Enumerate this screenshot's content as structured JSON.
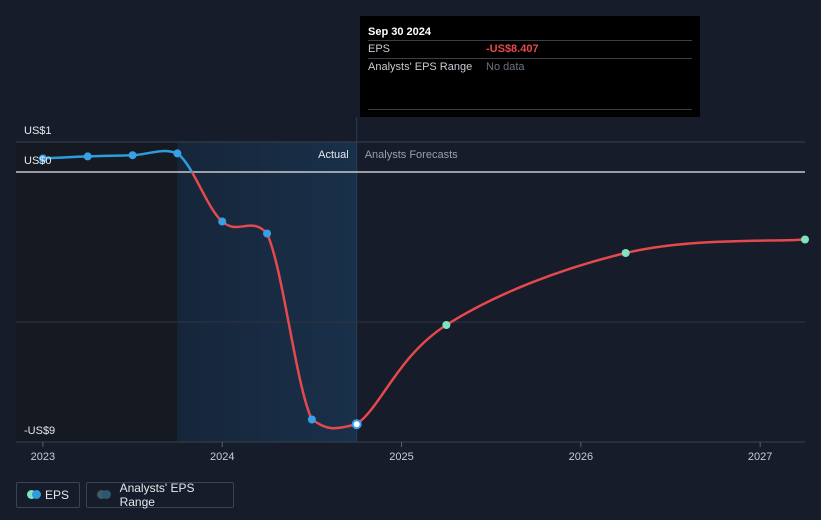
{
  "colors": {
    "background": "#161c29",
    "actual_line": "#2d9cdb",
    "eps_line": "#e5484d",
    "forecast_point": "#7fe3c0",
    "actual_point": "#3aa0e6",
    "shade": "#17293d"
  },
  "chart_data": {
    "type": "line",
    "y_tick_labels": [
      {
        "label": "US$1",
        "value": 1
      },
      {
        "label": "US$0",
        "value": 0
      },
      {
        "label": "-US$9",
        "value": -9
      }
    ],
    "ylim": [
      -9.5,
      1
    ],
    "x_tick_labels": [
      {
        "label": "2023",
        "value": 2023.0
      },
      {
        "label": "2024",
        "value": 2024.0
      },
      {
        "label": "2025",
        "value": 2025.0
      },
      {
        "label": "2026",
        "value": 2026.0
      },
      {
        "label": "2027",
        "value": 2027.0
      }
    ],
    "xlim": [
      2022.85,
      2027.25
    ],
    "region_labels": {
      "actual": "Actual",
      "forecast": "Analysts Forecasts"
    },
    "divider_x": 2024.75,
    "shade_from_x": 2023.75,
    "series": [
      {
        "name": "EPS",
        "actual_points": [
          {
            "x": 2023.0,
            "y": 0.45
          },
          {
            "x": 2023.25,
            "y": 0.52
          },
          {
            "x": 2023.5,
            "y": 0.56
          },
          {
            "x": 2023.75,
            "y": 0.62
          },
          {
            "x": 2024.0,
            "y": -1.65
          },
          {
            "x": 2024.25,
            "y": -2.05
          },
          {
            "x": 2024.5,
            "y": -8.25
          },
          {
            "x": 2024.75,
            "y": -8.407
          }
        ],
        "forecast_points": [
          {
            "x": 2025.25,
            "y": -5.1
          },
          {
            "x": 2026.25,
            "y": -2.7
          },
          {
            "x": 2027.25,
            "y": -2.25
          }
        ]
      }
    ],
    "legend": [
      "EPS",
      "Analysts' EPS Range"
    ]
  },
  "tooltip": {
    "date": "Sep 30 2024",
    "eps_label": "EPS",
    "eps_value": "-US$8.407",
    "range_label": "Analysts' EPS Range",
    "range_value": "No data"
  }
}
